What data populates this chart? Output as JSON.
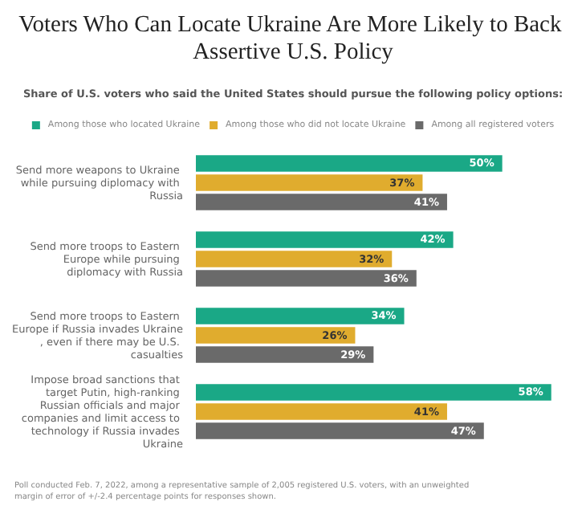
{
  "chart_data": {
    "type": "bar",
    "orientation": "horizontal",
    "title": "Voters Who Can Locate Ukraine Are More Likely to Back Assertive U.S. Policy",
    "subtitle": "Share of U.S. voters who said the United States should pursue the following policy options:",
    "categories": [
      "Send more weapons to Ukraine while pursuing diplomacy with Russia",
      "Send more troops to Eastern Europe while pursuing diplomacy with Russia",
      "Send more troops to Eastern Europe if Russia invades Ukraine, even if there may be U.S. casualties",
      "Impose broad sanctions that target Putin, high-ranking Russian officials and major companies and limit access to technology if Russia invades Ukraine"
    ],
    "series": [
      {
        "name": "Among those who located Ukraine",
        "color": "#1aa886",
        "values": [
          50,
          42,
          34,
          58
        ],
        "value_labels": [
          "50%",
          "42%",
          "34%",
          "58%"
        ]
      },
      {
        "name": "Among those who did not locate Ukraine",
        "color": "#e0ac2e",
        "values": [
          37,
          32,
          26,
          41
        ],
        "value_labels": [
          "37%",
          "32%",
          "26%",
          "41%"
        ]
      },
      {
        "name": "Among all registered voters",
        "color": "#6a6a6a",
        "values": [
          41,
          36,
          29,
          47
        ],
        "value_labels": [
          "41%",
          "36%",
          "29%",
          "47%"
        ]
      }
    ],
    "legend": "top",
    "grid": false,
    "annotations": [
      "Poll conducted Feb. 7, 2022, among a representative sample of 2,005 registered U.S. voters, with an unweighted margin of error of +/-2.4 percentage points for responses shown."
    ]
  }
}
